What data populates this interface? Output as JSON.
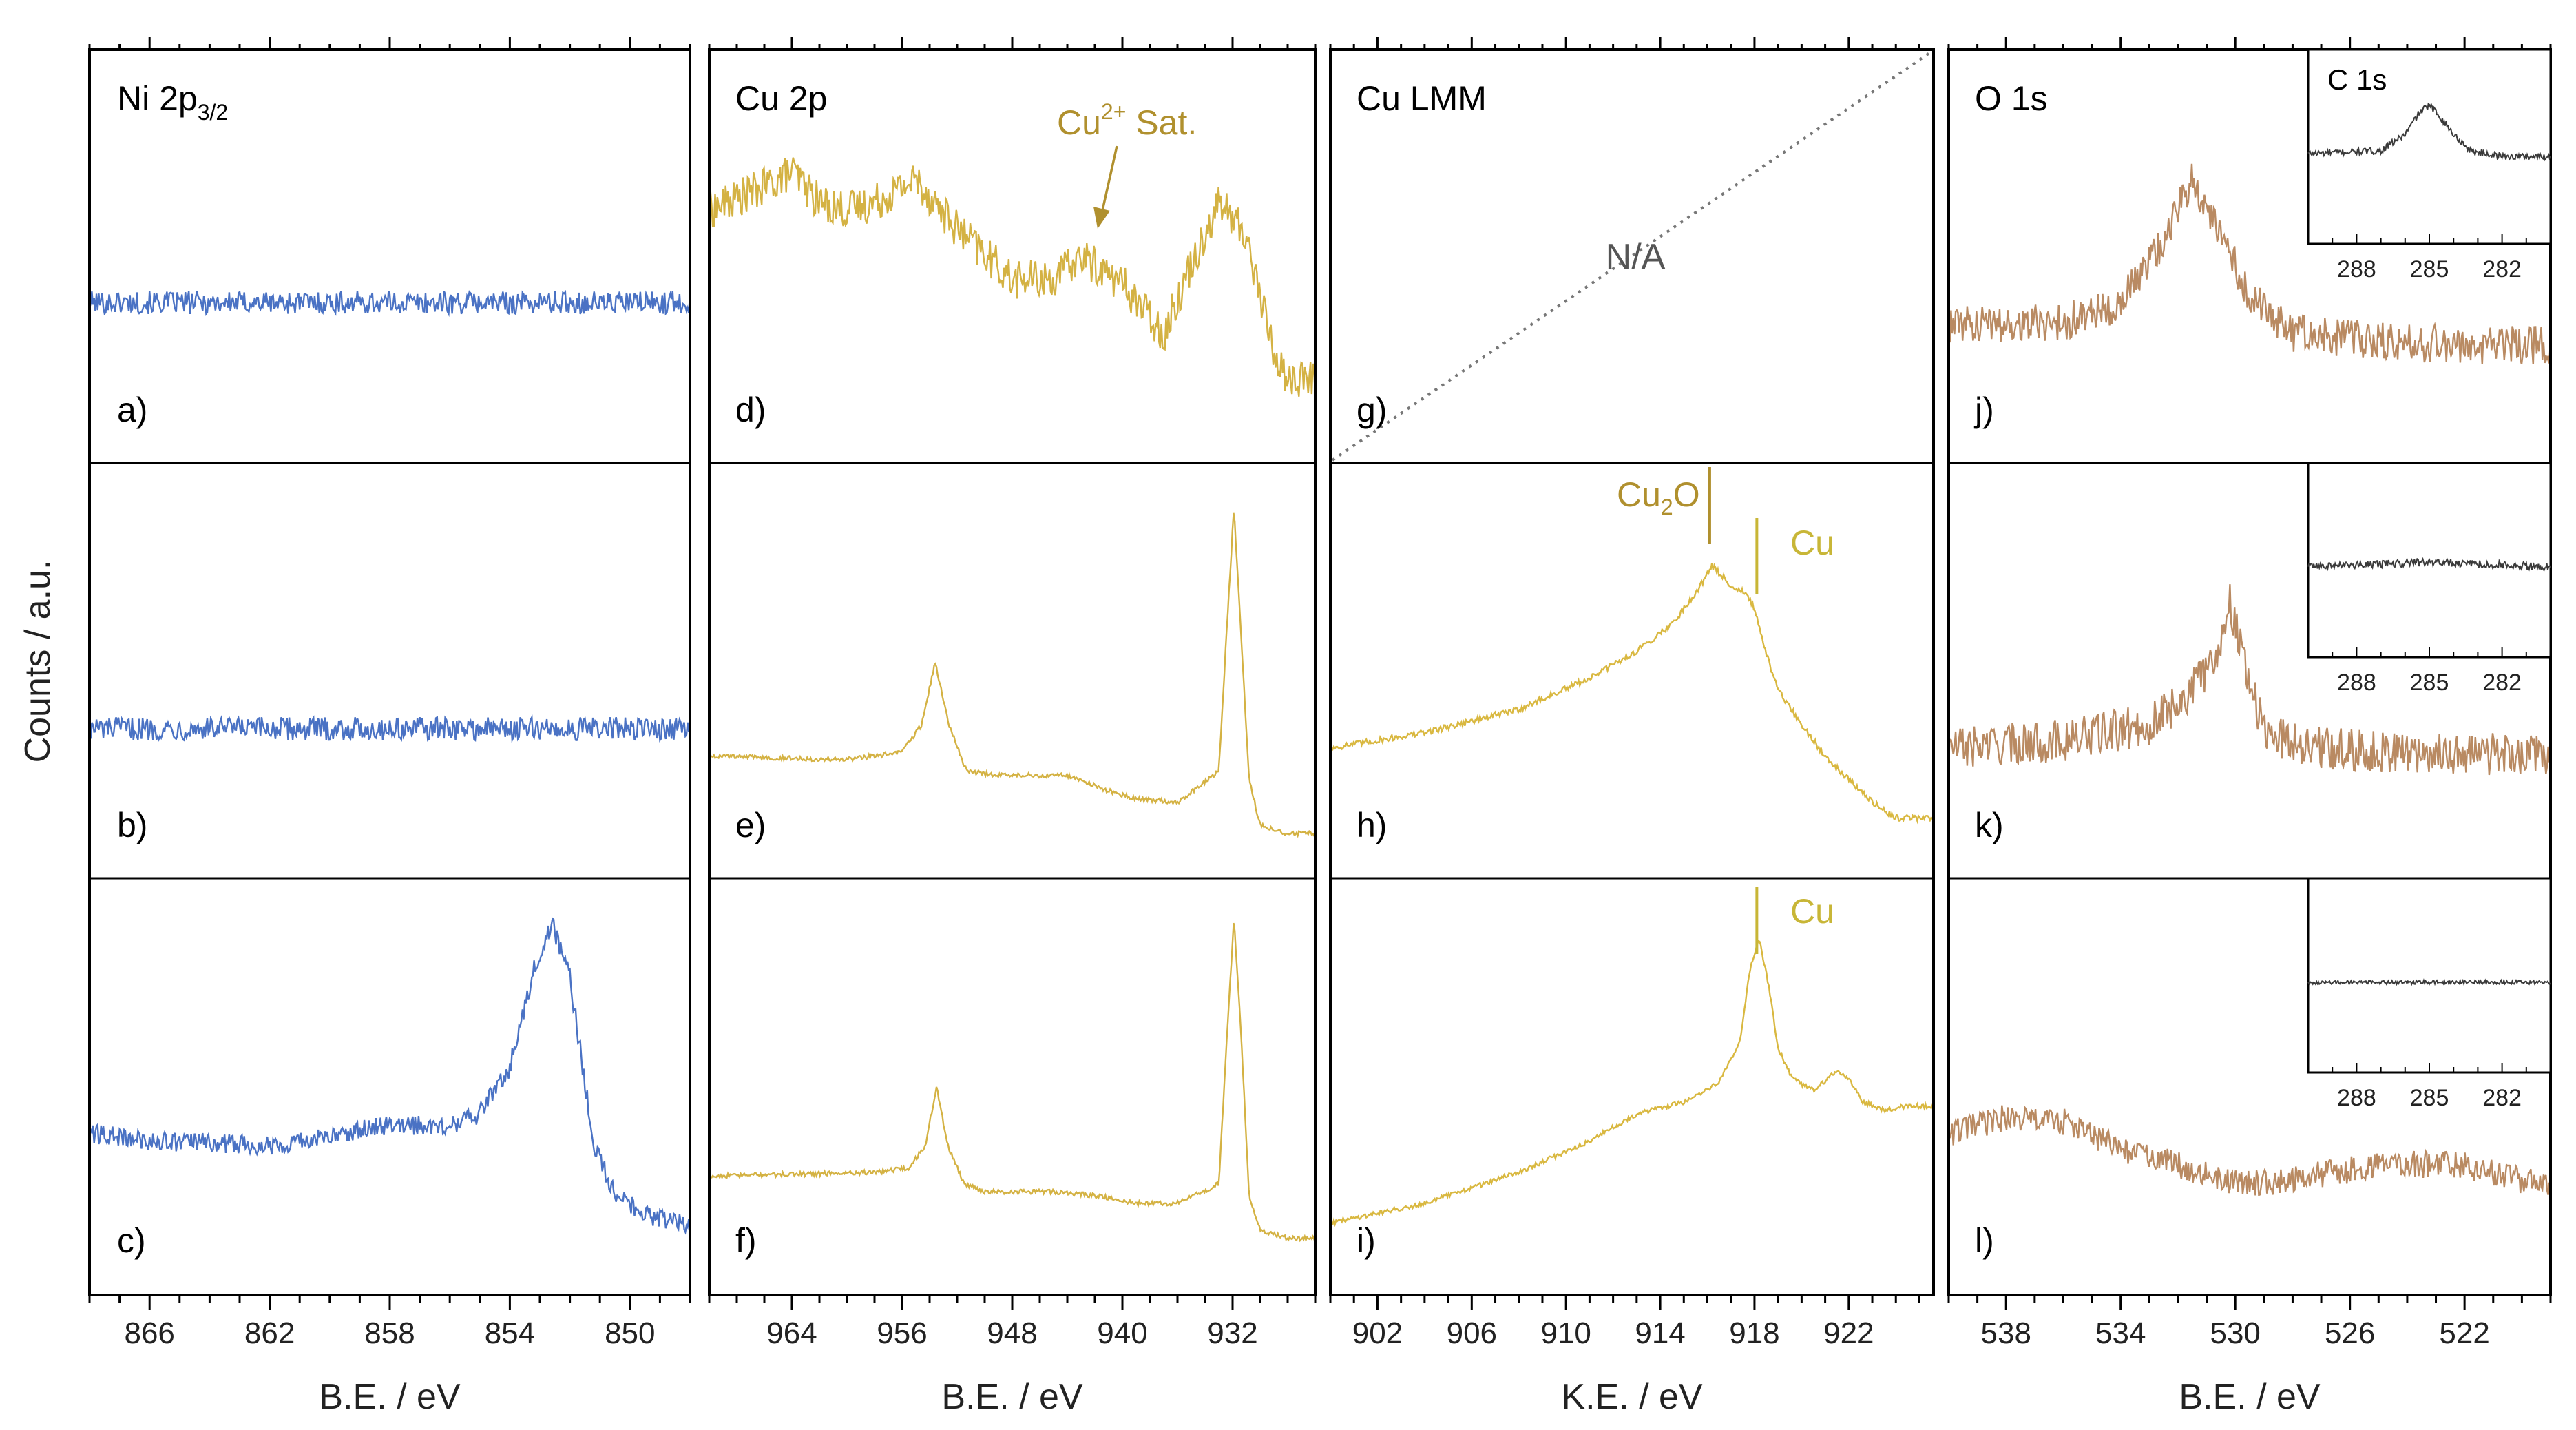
{
  "figure": {
    "ylabel": "Counts / a.u."
  },
  "colors": {
    "ni": "#4a72c4",
    "cu2p": "#d4b243",
    "culmm": "#d9b840",
    "o1s": "#b98a62",
    "c1s": "#3a3a3a",
    "annot_dark": "#b0902e",
    "annot_light": "#c8b637",
    "na_text": "#555555",
    "frame": "#000000"
  },
  "chart_data": [
    {
      "type": "line",
      "column": "ni",
      "title": "Ni 2p",
      "title_sub": "3/2",
      "xlabel": "B.E. / eV",
      "ylabel": "Counts / a.u.",
      "xlim": [
        868,
        848
      ],
      "xticks": [
        866,
        862,
        858,
        854,
        850
      ],
      "panel_labels": [
        "a)",
        "b)",
        "c)"
      ],
      "series": [
        {
          "row": 0,
          "name": "a)",
          "x": [
            868,
            850,
            848
          ],
          "y": [
            0.38,
            0.38,
            0.38
          ],
          "noise": 0.03
        },
        {
          "row": 1,
          "name": "b)",
          "x": [
            868,
            848
          ],
          "y": [
            0.35,
            0.35
          ],
          "noise": 0.03
        },
        {
          "row": 2,
          "name": "c)",
          "x": [
            868,
            866,
            862,
            860,
            858.5,
            856,
            855,
            854,
            853.2,
            852.6,
            852,
            851.2,
            850.5,
            849.5,
            848.5,
            848
          ],
          "y": [
            0.38,
            0.36,
            0.35,
            0.37,
            0.4,
            0.4,
            0.43,
            0.55,
            0.8,
            0.92,
            0.78,
            0.35,
            0.22,
            0.17,
            0.15,
            0.15
          ],
          "noise": 0.025
        }
      ]
    },
    {
      "type": "line",
      "column": "cu2p",
      "title": "Cu 2p",
      "xlabel": "B.E. / eV",
      "ylabel": "Counts / a.u.",
      "xlim": [
        970,
        926
      ],
      "xticks": [
        964,
        956,
        948,
        940,
        932
      ],
      "panel_labels": [
        "d)",
        "e)",
        "f)"
      ],
      "annotation": {
        "text": "Cu",
        "sup": "2+",
        "suffix": " Sat.",
        "x": 943
      },
      "series": [
        {
          "row": 0,
          "name": "d)",
          "x": [
            970,
            966,
            964,
            962,
            960,
            958,
            955,
            952,
            948,
            945,
            943,
            940,
            937,
            935,
            933,
            932,
            931,
            929,
            928,
            926
          ],
          "y": [
            0.62,
            0.68,
            0.72,
            0.64,
            0.62,
            0.64,
            0.7,
            0.57,
            0.44,
            0.44,
            0.5,
            0.43,
            0.3,
            0.48,
            0.64,
            0.6,
            0.55,
            0.25,
            0.18,
            0.18
          ],
          "noise": 0.05
        },
        {
          "row": 1,
          "name": "e)",
          "x": [
            970,
            960,
            956,
            954.6,
            953.6,
            952.6,
            951.3,
            949,
            944,
            941,
            939,
            936,
            933,
            932.4,
            931.9,
            931.4,
            930.8,
            930,
            928,
            926
          ],
          "y": [
            0.28,
            0.27,
            0.29,
            0.36,
            0.52,
            0.36,
            0.24,
            0.23,
            0.23,
            0.19,
            0.17,
            0.16,
            0.24,
            0.62,
            0.92,
            0.6,
            0.22,
            0.1,
            0.08,
            0.08
          ],
          "noise": 0.006
        },
        {
          "row": 2,
          "name": "f)",
          "x": [
            970,
            958,
            955.5,
            954.3,
            953.5,
            952.7,
            951.5,
            950,
            945,
            942,
            939,
            936,
            933,
            932.3,
            931.9,
            931.4,
            930.8,
            930,
            928,
            926
          ],
          "y": [
            0.27,
            0.28,
            0.29,
            0.35,
            0.5,
            0.35,
            0.25,
            0.23,
            0.23,
            0.22,
            0.2,
            0.2,
            0.25,
            0.7,
            0.93,
            0.65,
            0.22,
            0.13,
            0.11,
            0.11
          ],
          "noise": 0.006
        }
      ]
    },
    {
      "type": "line",
      "column": "culmm",
      "title": "Cu LMM",
      "xlabel": "K.E. / eV",
      "ylabel": "Counts / a.u.",
      "xlim": [
        900,
        925.6
      ],
      "xticks": [
        902,
        906,
        910,
        914,
        918,
        922
      ],
      "panel_labels": [
        "g)",
        "h)",
        "i)"
      ],
      "na_text": "N/A",
      "markers": [
        {
          "row": 1,
          "label": "Cu",
          "sub": "2",
          "suffix": "O",
          "x": 916.1,
          "color": "annot_dark"
        },
        {
          "row": 1,
          "label": "Cu",
          "x": 918.1,
          "color": "annot_light"
        },
        {
          "row": 2,
          "label": "Cu",
          "x": 918.1,
          "color": "annot_light"
        }
      ],
      "series": [
        {
          "row": 1,
          "name": "h)",
          "x": [
            900,
            904,
            908,
            911,
            913,
            914.5,
            915.5,
            916.2,
            917,
            917.6,
            918,
            918.4,
            919,
            920,
            921,
            922,
            923,
            924,
            925.6
          ],
          "y": [
            0.3,
            0.34,
            0.4,
            0.48,
            0.55,
            0.62,
            0.7,
            0.77,
            0.72,
            0.7,
            0.66,
            0.56,
            0.45,
            0.36,
            0.28,
            0.22,
            0.16,
            0.12,
            0.12
          ],
          "noise": 0.008
        },
        {
          "row": 2,
          "name": "i)",
          "x": [
            900,
            904,
            908,
            911,
            913,
            915,
            916.5,
            917.4,
            917.8,
            918.2,
            918.6,
            919,
            919.6,
            920.5,
            921.5,
            922,
            922.6,
            923.5,
            924.5,
            925.6
          ],
          "y": [
            0.15,
            0.2,
            0.28,
            0.36,
            0.43,
            0.46,
            0.51,
            0.62,
            0.8,
            0.88,
            0.76,
            0.6,
            0.52,
            0.49,
            0.54,
            0.52,
            0.46,
            0.44,
            0.45,
            0.45
          ],
          "noise": 0.006
        }
      ]
    },
    {
      "type": "line",
      "column": "o1s",
      "title": "O 1s",
      "xlabel": "B.E. / eV",
      "ylabel": "Counts / a.u.",
      "xlim": [
        540,
        519
      ],
      "xticks": [
        538,
        534,
        530,
        526,
        522
      ],
      "panel_labels": [
        "j)",
        "k)",
        "l)"
      ],
      "series": [
        {
          "row": 0,
          "name": "j)",
          "x": [
            540,
            536,
            534,
            533,
            532,
            531.5,
            531,
            530.5,
            529.5,
            528,
            525,
            522,
            519
          ],
          "y": [
            0.32,
            0.33,
            0.38,
            0.48,
            0.62,
            0.7,
            0.62,
            0.55,
            0.4,
            0.3,
            0.28,
            0.27,
            0.27
          ],
          "noise": 0.05
        },
        {
          "row": 1,
          "name": "k)",
          "x": [
            540,
            536,
            533,
            531.5,
            530.6,
            530.2,
            529.8,
            529,
            527,
            524,
            519
          ],
          "y": [
            0.3,
            0.32,
            0.36,
            0.45,
            0.55,
            0.68,
            0.56,
            0.34,
            0.3,
            0.29,
            0.28
          ],
          "noise": 0.055
        },
        {
          "row": 2,
          "name": "l)",
          "x": [
            540,
            538,
            536,
            534,
            532,
            530,
            528,
            525,
            522,
            519
          ],
          "y": [
            0.38,
            0.42,
            0.41,
            0.34,
            0.3,
            0.25,
            0.26,
            0.3,
            0.3,
            0.24
          ],
          "noise": 0.035
        }
      ]
    },
    {
      "type": "line",
      "column": "c1s-inset",
      "title": "C 1s",
      "xlim": [
        290,
        280
      ],
      "xticks": [
        288,
        285,
        282
      ],
      "series": [
        {
          "row": 0,
          "x": [
            290,
            287,
            286,
            285.4,
            285,
            284.6,
            284,
            283.3,
            282,
            280
          ],
          "y": [
            0.35,
            0.38,
            0.55,
            0.78,
            0.85,
            0.75,
            0.55,
            0.38,
            0.32,
            0.32
          ],
          "noise": 0.035
        },
        {
          "row": 1,
          "x": [
            290,
            285,
            280
          ],
          "y": [
            0.35,
            0.4,
            0.35
          ],
          "noise": 0.04
        },
        {
          "row": 2,
          "x": [
            290,
            280
          ],
          "y": [
            0.35,
            0.35
          ],
          "noise": 0.02
        }
      ]
    }
  ]
}
